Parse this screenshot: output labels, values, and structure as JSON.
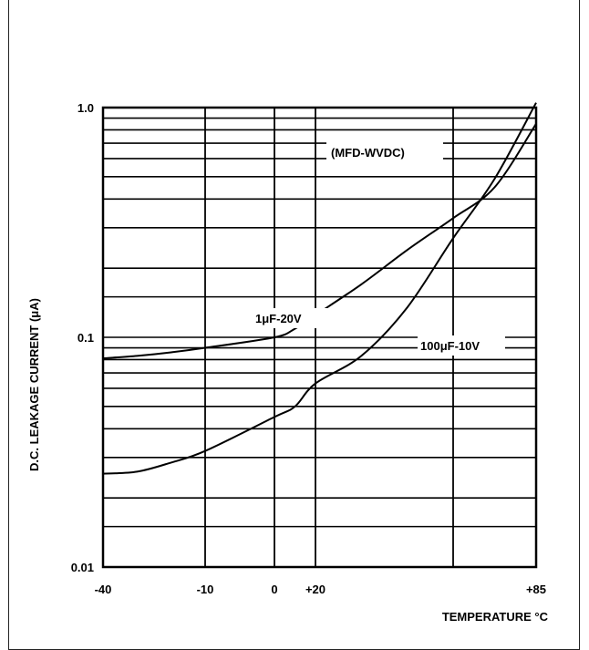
{
  "chart_data": {
    "type": "line",
    "title": "",
    "xlabel": "TEMPERATURE °C",
    "ylabel": "D.C. LEAKAGE CURRENT (μA)",
    "y_scale": "log",
    "ylim": [
      0.01,
      1.0
    ],
    "xlim": [
      -40,
      85
    ],
    "x_ticks": [
      {
        "value": -40,
        "label": "-40"
      },
      {
        "value": -10,
        "label": "-10"
      },
      {
        "value": 0,
        "label": "0"
      },
      {
        "value": 20,
        "label": "+20"
      },
      {
        "value": 85,
        "label": "+85"
      }
    ],
    "x_gridlines": [
      -40,
      -10,
      0,
      20,
      65,
      85
    ],
    "y_ticks": [
      {
        "value": 1.0,
        "label": "1.0"
      },
      {
        "value": 0.1,
        "label": "0.1"
      },
      {
        "value": 0.01,
        "label": "0.01"
      }
    ],
    "y_gridlines": [
      0.01,
      0.015,
      0.02,
      0.03,
      0.04,
      0.05,
      0.06,
      0.07,
      0.08,
      0.09,
      0.1,
      0.15,
      0.2,
      0.3,
      0.4,
      0.5,
      0.6,
      0.7,
      0.8,
      0.9,
      1.0
    ],
    "grid": true,
    "legend_title": "(MFD-WVDC)",
    "series": [
      {
        "name": "1μF-20V",
        "x": [
          -40,
          -30,
          -20,
          -10,
          0,
          10,
          20,
          35,
          50,
          65,
          75,
          85
        ],
        "y": [
          0.081,
          0.083,
          0.086,
          0.09,
          0.1,
          0.109,
          0.125,
          0.17,
          0.24,
          0.33,
          0.45,
          0.85
        ]
      },
      {
        "name": "100μF-10V",
        "x": [
          -40,
          -30,
          -20,
          -10,
          0,
          10,
          20,
          35,
          50,
          65,
          75,
          85
        ],
        "y": [
          0.0255,
          0.026,
          0.0285,
          0.032,
          0.045,
          0.05,
          0.063,
          0.083,
          0.135,
          0.27,
          0.49,
          1.05
        ]
      }
    ]
  }
}
